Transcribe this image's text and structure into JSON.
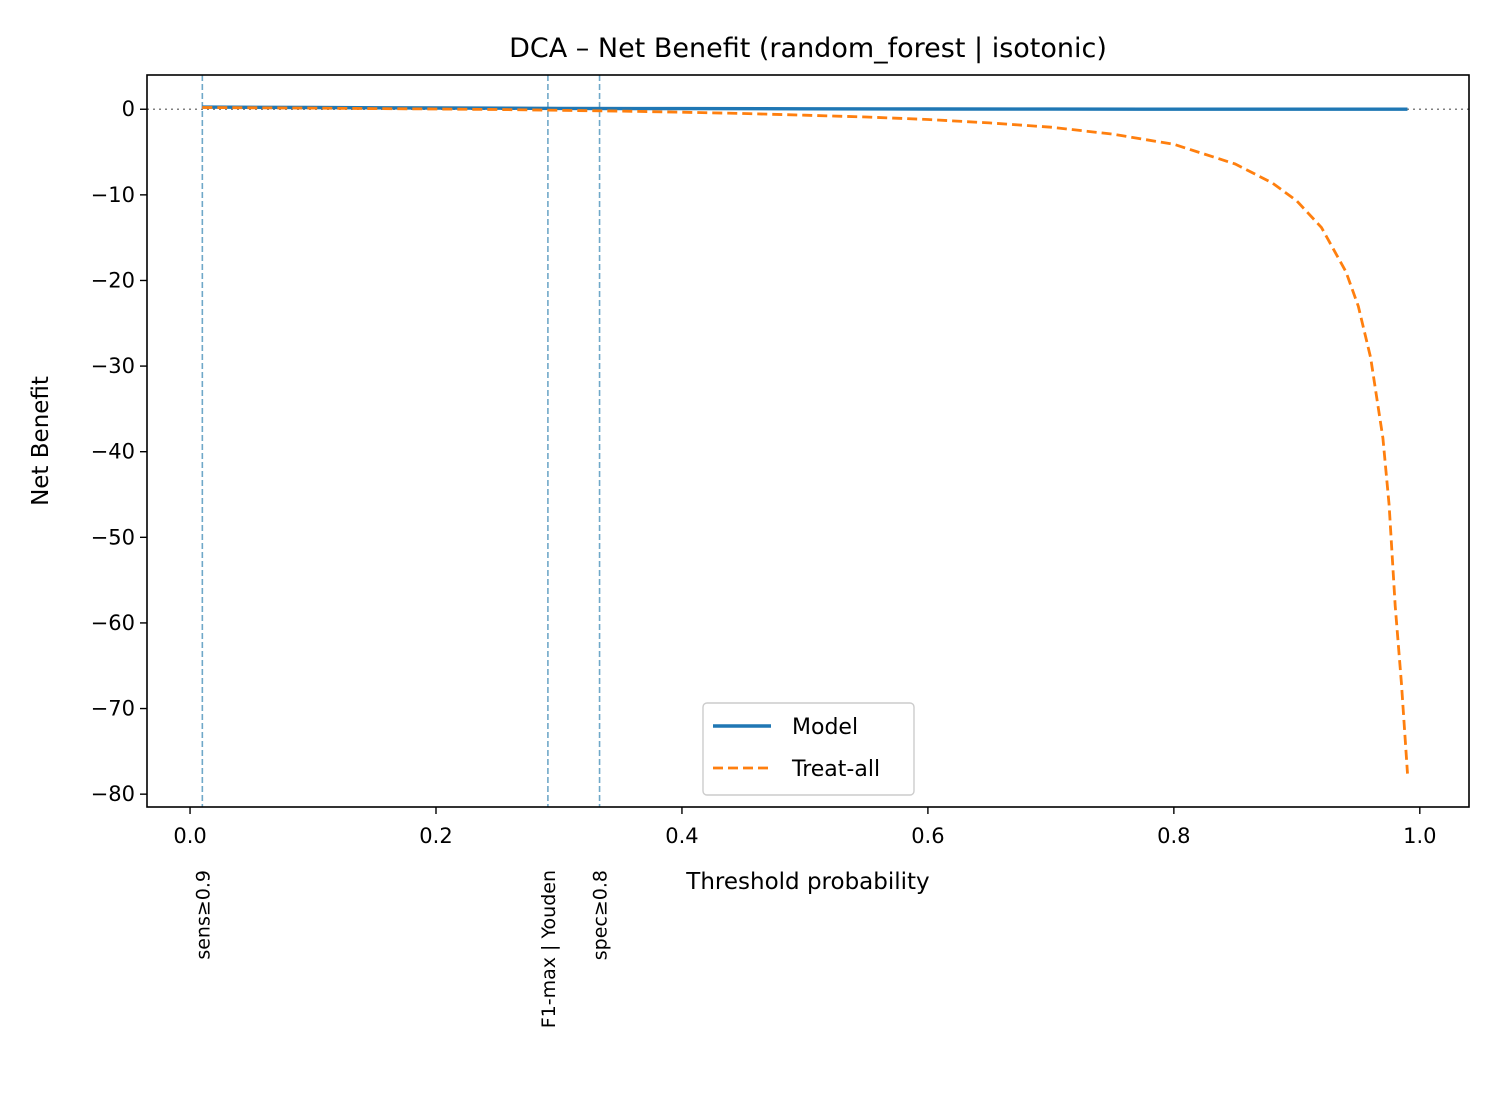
{
  "chart_data": {
    "type": "line",
    "title": "DCA – Net Benefit (random_forest | isotonic)",
    "xlabel": "Threshold probability",
    "ylabel": "Net Benefit",
    "xlim": [
      -0.035,
      1.04
    ],
    "ylim": [
      -81.5,
      4
    ],
    "xticks": [
      {
        "value": 0.0,
        "label": "0.0"
      },
      {
        "value": 0.2,
        "label": "0.2"
      },
      {
        "value": 0.4,
        "label": "0.4"
      },
      {
        "value": 0.6,
        "label": "0.6"
      },
      {
        "value": 0.8,
        "label": "0.8"
      },
      {
        "value": 1.0,
        "label": "1.0"
      }
    ],
    "yticks": [
      {
        "value": 0,
        "label": "0"
      },
      {
        "value": -10,
        "label": "−10"
      },
      {
        "value": -20,
        "label": "−20"
      },
      {
        "value": -30,
        "label": "−30"
      },
      {
        "value": -40,
        "label": "−40"
      },
      {
        "value": -50,
        "label": "−50"
      },
      {
        "value": -60,
        "label": "−60"
      },
      {
        "value": -70,
        "label": "−70"
      },
      {
        "value": -80,
        "label": "−80"
      }
    ],
    "zero_line": true,
    "grid": false,
    "legend_position": "bottom-center",
    "series": [
      {
        "name": "Model",
        "color": "#1f77b4",
        "style": "solid",
        "x": [
          0.01,
          0.1,
          0.2,
          0.3,
          0.4,
          0.5,
          0.6,
          0.7,
          0.8,
          0.9,
          0.99
        ],
        "y": [
          0.25,
          0.2,
          0.15,
          0.1,
          0.07,
          0.05,
          0.03,
          0.02,
          0.01,
          0.0,
          0.0
        ]
      },
      {
        "name": "Treat-all",
        "color": "#ff7f0e",
        "style": "dashed",
        "x": [
          0.01,
          0.05,
          0.1,
          0.15,
          0.2,
          0.25,
          0.3,
          0.35,
          0.4,
          0.45,
          0.5,
          0.55,
          0.6,
          0.65,
          0.7,
          0.75,
          0.8,
          0.85,
          0.88,
          0.9,
          0.92,
          0.94,
          0.95,
          0.96,
          0.97,
          0.975,
          0.98,
          0.985,
          0.99
        ],
        "y": [
          0.2,
          0.17,
          0.13,
          0.08,
          0.03,
          -0.03,
          -0.12,
          -0.22,
          -0.35,
          -0.5,
          -0.7,
          -0.9,
          -1.2,
          -1.6,
          -2.1,
          -2.9,
          -4.1,
          -6.4,
          -8.6,
          -10.7,
          -13.8,
          -19.0,
          -23.0,
          -29.0,
          -38.4,
          -46.2,
          -58.0,
          -67.0,
          -77.6
        ]
      }
    ],
    "threshold_lines": [
      {
        "x": 0.01,
        "label": "sens≥0.9",
        "color": "#6fa8c8"
      },
      {
        "x": 0.291,
        "label": "F1-max | Youden",
        "color": "#6fa8c8"
      },
      {
        "x": 0.333,
        "label": "spec≥0.8",
        "color": "#6fa8c8"
      }
    ]
  }
}
